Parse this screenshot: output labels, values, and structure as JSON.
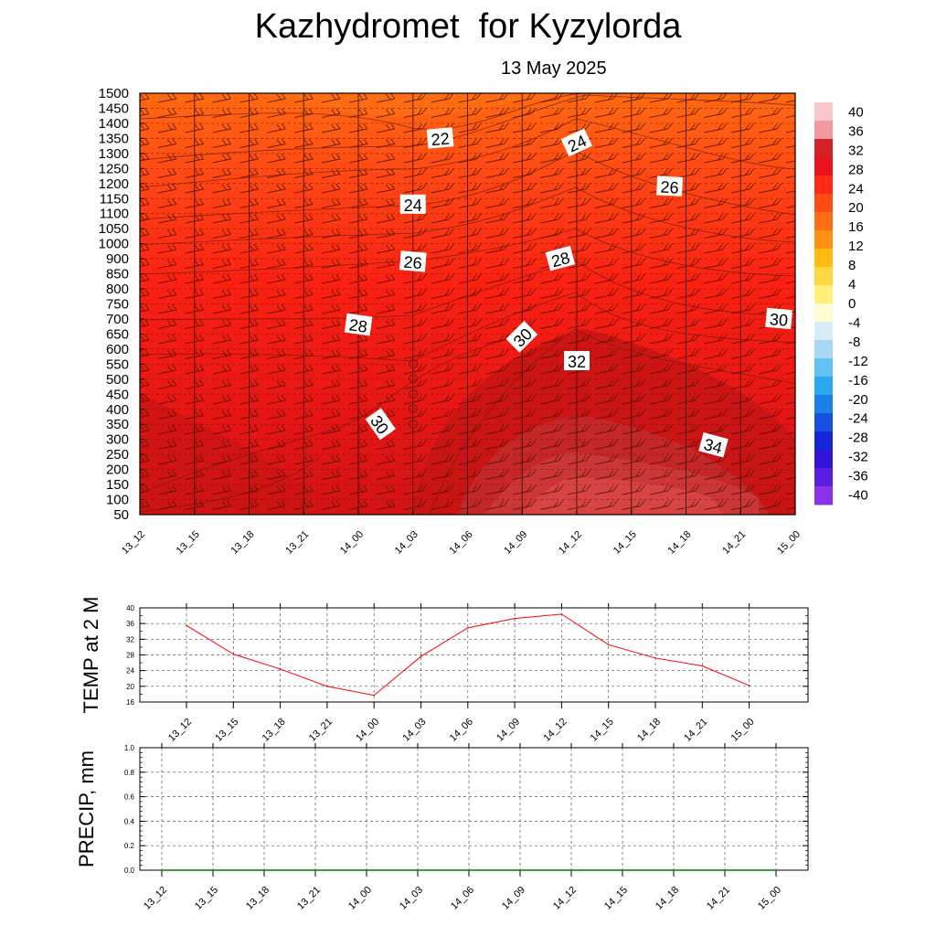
{
  "header": {
    "title": "Kazhydromet  for Kyzylorda",
    "date": "13 May 2025"
  },
  "time_labels": [
    "13_12",
    "13_15",
    "13_18",
    "13_21",
    "14_00",
    "14_03",
    "14_06",
    "14_09",
    "14_12",
    "14_15",
    "14_18",
    "14_21",
    "15_00"
  ],
  "chart_data": [
    {
      "type": "heatmap",
      "title": "",
      "y_ticks": [
        1500,
        1450,
        1400,
        1350,
        1300,
        1250,
        1200,
        1150,
        1100,
        1050,
        1000,
        900,
        850,
        800,
        750,
        700,
        650,
        600,
        550,
        500,
        450,
        400,
        350,
        300,
        250,
        200,
        150,
        100,
        50
      ],
      "colorbar": {
        "labels": [
          40,
          36,
          32,
          28,
          24,
          20,
          16,
          12,
          8,
          4,
          0,
          -4,
          -8,
          -12,
          -16,
          -20,
          -24,
          -28,
          -32,
          -36,
          -40
        ],
        "colors": [
          "#f9c6c9",
          "#f29a9f",
          "#d42127",
          "#e8141a",
          "#ff2a14",
          "#ff4b14",
          "#ff6e14",
          "#ff9214",
          "#ffba14",
          "#ffd840",
          "#fff07a",
          "#fffbd2",
          "#d8ecf8",
          "#a8d8f4",
          "#62c3f2",
          "#2aa9ef",
          "#1b7fe8",
          "#1550e0",
          "#1426d8",
          "#3015d8",
          "#5a1ee0",
          "#8b32ea"
        ]
      },
      "contour_labels": [
        {
          "text": "22",
          "time_index": 5.5,
          "height": 1350,
          "angle": -5
        },
        {
          "text": "24",
          "time_index": 8.0,
          "height": 1335,
          "angle": -25
        },
        {
          "text": "24",
          "time_index": 5.0,
          "height": 1130,
          "angle": 0
        },
        {
          "text": "26",
          "time_index": 9.7,
          "height": 1190,
          "angle": 3
        },
        {
          "text": "26",
          "time_index": 5.0,
          "height": 890,
          "angle": 5
        },
        {
          "text": "28",
          "time_index": 7.7,
          "height": 900,
          "angle": -15
        },
        {
          "text": "28",
          "time_index": 4.0,
          "height": 680,
          "angle": 8
        },
        {
          "text": "30",
          "time_index": 11.7,
          "height": 700,
          "angle": 5
        },
        {
          "text": "30",
          "time_index": 7.0,
          "height": 640,
          "angle": -45
        },
        {
          "text": "32",
          "time_index": 8.0,
          "height": 560,
          "angle": 0
        },
        {
          "text": "30",
          "time_index": 4.4,
          "height": 350,
          "angle": 55
        },
        {
          "text": "34",
          "time_index": 10.5,
          "height": 280,
          "angle": 15
        }
      ]
    },
    {
      "type": "line",
      "ylabel": "TEMP at 2 M",
      "x": [
        "13_12",
        "13_15",
        "13_18",
        "13_21",
        "14_00",
        "14_03",
        "14_06",
        "14_09",
        "14_12",
        "14_15",
        "14_18",
        "14_21",
        "15_00"
      ],
      "values": [
        35.5,
        28.2,
        24.4,
        20.0,
        17.7,
        27.6,
        34.9,
        37.3,
        38.4,
        30.6,
        27.2,
        25.2,
        20.2
      ],
      "ylim": [
        16,
        40
      ],
      "y_ticks": [
        16,
        20,
        24,
        28,
        32,
        36,
        40
      ],
      "line_color": "#ff0000",
      "grid": true
    },
    {
      "type": "line",
      "ylabel": "PRECIP, mm",
      "x": [
        "13_12",
        "13_15",
        "13_18",
        "13_21",
        "14_00",
        "14_03",
        "14_06",
        "14_09",
        "14_12",
        "14_15",
        "14_18",
        "14_21",
        "15_00"
      ],
      "values": [
        0,
        0,
        0,
        0,
        0,
        0,
        0,
        0,
        0,
        0,
        0,
        0,
        0
      ],
      "ylim": [
        0,
        1
      ],
      "y_ticks": [
        "0.0",
        "0.2",
        "0.4",
        "0.6",
        "0.8",
        "1.0"
      ],
      "line_color": "#008000",
      "grid": true
    }
  ]
}
